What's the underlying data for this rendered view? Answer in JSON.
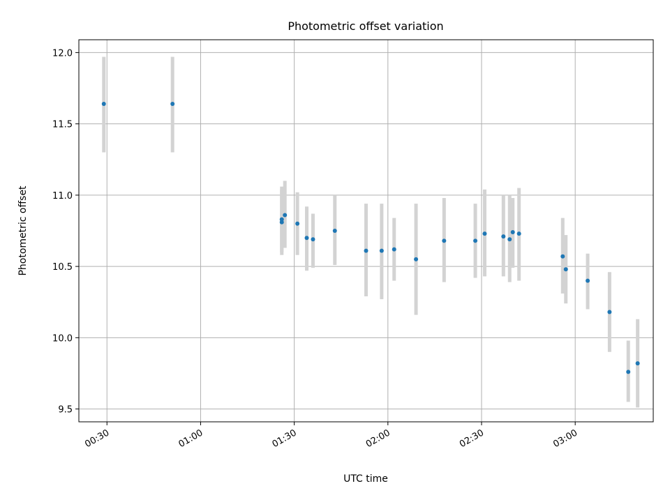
{
  "chart_data": {
    "type": "scatter",
    "title": "Photometric offset variation",
    "xlabel": "UTC time",
    "ylabel": "Photometric offset",
    "x_unit": "hh:mm",
    "xlim": [
      "00:21",
      "03:25"
    ],
    "ylim": [
      9.41,
      12.09
    ],
    "x_ticks": [
      "00:30",
      "01:00",
      "01:30",
      "02:00",
      "02:30",
      "03:00"
    ],
    "y_ticks": [
      "9.5",
      "10.0",
      "10.5",
      "11.0",
      "11.5",
      "12.0"
    ],
    "grid": true,
    "legend": "none",
    "colors": {
      "point": "#1f77b4",
      "errorbar": "#d3d3d3",
      "grid": "#b0b0b0"
    },
    "series": [
      {
        "points": [
          {
            "x": "00:29",
            "y": 11.64,
            "lo": 11.3,
            "hi": 11.97
          },
          {
            "x": "00:51",
            "y": 11.64,
            "lo": 11.3,
            "hi": 11.97
          },
          {
            "x": "01:26",
            "y": 10.83,
            "lo": 10.6,
            "hi": 11.06
          },
          {
            "x": "01:26",
            "y": 10.81,
            "lo": 10.58,
            "hi": 11.04
          },
          {
            "x": "01:27",
            "y": 10.86,
            "lo": 10.63,
            "hi": 11.1
          },
          {
            "x": "01:31",
            "y": 10.8,
            "lo": 10.58,
            "hi": 11.02
          },
          {
            "x": "01:34",
            "y": 10.7,
            "lo": 10.47,
            "hi": 10.92
          },
          {
            "x": "01:36",
            "y": 10.69,
            "lo": 10.49,
            "hi": 10.87
          },
          {
            "x": "01:43",
            "y": 10.75,
            "lo": 10.51,
            "hi": 11.0
          },
          {
            "x": "01:53",
            "y": 10.61,
            "lo": 10.29,
            "hi": 10.94
          },
          {
            "x": "01:58",
            "y": 10.61,
            "lo": 10.27,
            "hi": 10.94
          },
          {
            "x": "02:02",
            "y": 10.62,
            "lo": 10.4,
            "hi": 10.84
          },
          {
            "x": "02:09",
            "y": 10.55,
            "lo": 10.16,
            "hi": 10.94
          },
          {
            "x": "02:18",
            "y": 10.68,
            "lo": 10.39,
            "hi": 10.98
          },
          {
            "x": "02:28",
            "y": 10.68,
            "lo": 10.42,
            "hi": 10.94
          },
          {
            "x": "02:31",
            "y": 10.73,
            "lo": 10.43,
            "hi": 11.04
          },
          {
            "x": "02:37",
            "y": 10.71,
            "lo": 10.43,
            "hi": 11.0
          },
          {
            "x": "02:39",
            "y": 10.69,
            "lo": 10.39,
            "hi": 11.0
          },
          {
            "x": "02:40",
            "y": 10.74,
            "lo": 10.49,
            "hi": 10.98
          },
          {
            "x": "02:42",
            "y": 10.73,
            "lo": 10.4,
            "hi": 11.05
          },
          {
            "x": "02:56",
            "y": 10.57,
            "lo": 10.31,
            "hi": 10.84
          },
          {
            "x": "02:57",
            "y": 10.48,
            "lo": 10.24,
            "hi": 10.72
          },
          {
            "x": "03:04",
            "y": 10.4,
            "lo": 10.2,
            "hi": 10.59
          },
          {
            "x": "03:11",
            "y": 10.18,
            "lo": 9.9,
            "hi": 10.46
          },
          {
            "x": "03:17",
            "y": 9.76,
            "lo": 9.55,
            "hi": 9.98
          },
          {
            "x": "03:20",
            "y": 9.82,
            "lo": 9.51,
            "hi": 10.13
          }
        ]
      }
    ]
  }
}
